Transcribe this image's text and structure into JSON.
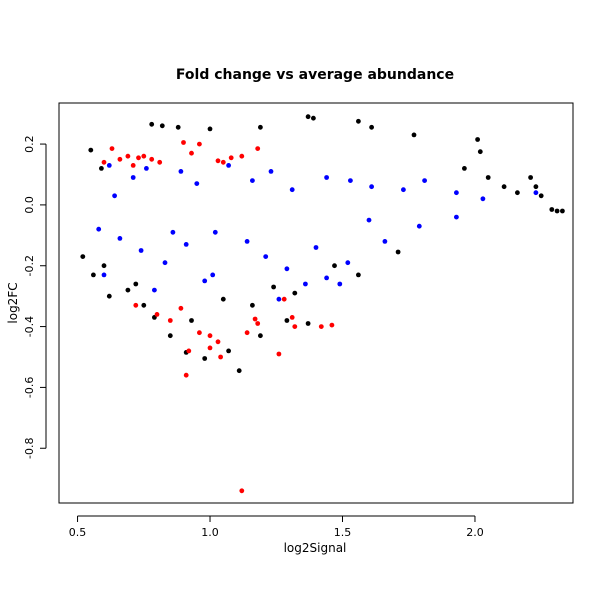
{
  "chart_data": {
    "type": "scatter",
    "title": "Fold change vs average abundance",
    "xlabel": "log2Signal",
    "ylabel": "log2FC",
    "xlim": [
      0.43,
      2.37
    ],
    "ylim": [
      -0.98,
      0.335
    ],
    "xticks": [
      0.5,
      1.0,
      1.5,
      2.0
    ],
    "xtick_labels": [
      "0.5",
      "1.0",
      "1.5",
      "2.0"
    ],
    "yticks": [
      -0.8,
      -0.6,
      -0.4,
      -0.2,
      0.0,
      0.2
    ],
    "ytick_labels": [
      "-0.8",
      "-0.6",
      "-0.4",
      "-0.2",
      "0.0",
      "0.2"
    ],
    "grid": false,
    "legend": "none",
    "series": [
      {
        "color": "#000000",
        "points": [
          [
            1.37,
            0.29
          ],
          [
            1.39,
            0.285
          ],
          [
            1.56,
            0.275
          ],
          [
            0.78,
            0.265
          ],
          [
            0.82,
            0.26
          ],
          [
            0.88,
            0.255
          ],
          [
            1.19,
            0.255
          ],
          [
            1.0,
            0.25
          ],
          [
            1.77,
            0.23
          ],
          [
            2.01,
            0.215
          ],
          [
            2.02,
            0.175
          ],
          [
            2.21,
            0.09
          ],
          [
            2.23,
            0.06
          ],
          [
            2.25,
            0.03
          ],
          [
            2.31,
            -0.02
          ],
          [
            2.33,
            -0.02
          ],
          [
            2.29,
            -0.015
          ],
          [
            1.71,
            -0.155
          ],
          [
            1.11,
            -0.545
          ],
          [
            0.98,
            -0.505
          ],
          [
            0.91,
            -0.485
          ],
          [
            1.07,
            -0.48
          ],
          [
            1.19,
            -0.43
          ],
          [
            0.85,
            -0.43
          ],
          [
            1.37,
            -0.39
          ],
          [
            1.29,
            -0.38
          ],
          [
            0.93,
            -0.38
          ],
          [
            0.79,
            -0.37
          ],
          [
            0.62,
            -0.3
          ],
          [
            0.69,
            -0.28
          ],
          [
            0.56,
            -0.23
          ],
          [
            0.6,
            -0.2
          ],
          [
            0.52,
            -0.17
          ],
          [
            1.61,
            0.255
          ],
          [
            0.55,
            0.18
          ],
          [
            0.59,
            0.12
          ],
          [
            1.96,
            0.12
          ],
          [
            2.05,
            0.09
          ],
          [
            2.11,
            0.06
          ],
          [
            2.16,
            0.04
          ],
          [
            1.56,
            -0.23
          ],
          [
            1.47,
            -0.2
          ],
          [
            1.24,
            -0.27
          ],
          [
            1.32,
            -0.29
          ],
          [
            1.05,
            -0.31
          ],
          [
            1.16,
            -0.33
          ],
          [
            0.75,
            -0.33
          ],
          [
            0.72,
            -0.26
          ]
        ]
      },
      {
        "color": "#0000ff",
        "points": [
          [
            0.62,
            0.13
          ],
          [
            0.71,
            0.09
          ],
          [
            0.76,
            0.12
          ],
          [
            0.89,
            0.11
          ],
          [
            0.95,
            0.07
          ],
          [
            1.07,
            0.13
          ],
          [
            1.16,
            0.08
          ],
          [
            1.23,
            0.11
          ],
          [
            1.31,
            0.05
          ],
          [
            1.44,
            0.09
          ],
          [
            1.53,
            0.08
          ],
          [
            1.61,
            0.06
          ],
          [
            1.73,
            0.05
          ],
          [
            1.81,
            0.08
          ],
          [
            1.93,
            0.04
          ],
          [
            2.03,
            0.02
          ],
          [
            2.23,
            0.04
          ],
          [
            0.64,
            0.03
          ],
          [
            0.58,
            -0.08
          ],
          [
            0.66,
            -0.11
          ],
          [
            0.74,
            -0.15
          ],
          [
            0.83,
            -0.19
          ],
          [
            0.91,
            -0.13
          ],
          [
            1.02,
            -0.09
          ],
          [
            1.14,
            -0.12
          ],
          [
            1.21,
            -0.17
          ],
          [
            1.29,
            -0.21
          ],
          [
            1.36,
            -0.26
          ],
          [
            1.44,
            -0.24
          ],
          [
            1.52,
            -0.19
          ],
          [
            1.66,
            -0.12
          ],
          [
            1.79,
            -0.07
          ],
          [
            0.6,
            -0.23
          ],
          [
            0.79,
            -0.28
          ],
          [
            0.98,
            -0.25
          ],
          [
            1.26,
            -0.31
          ],
          [
            1.49,
            -0.26
          ],
          [
            1.01,
            -0.23
          ],
          [
            0.86,
            -0.09
          ],
          [
            1.4,
            -0.14
          ],
          [
            1.6,
            -0.05
          ],
          [
            1.93,
            -0.04
          ]
        ]
      },
      {
        "color": "#ff0000",
        "points": [
          [
            0.6,
            0.14
          ],
          [
            0.63,
            0.185
          ],
          [
            0.66,
            0.15
          ],
          [
            0.69,
            0.16
          ],
          [
            0.71,
            0.13
          ],
          [
            0.73,
            0.155
          ],
          [
            0.75,
            0.16
          ],
          [
            0.78,
            0.15
          ],
          [
            0.81,
            0.14
          ],
          [
            0.9,
            0.205
          ],
          [
            0.93,
            0.17
          ],
          [
            0.96,
            0.2
          ],
          [
            1.03,
            0.145
          ],
          [
            1.05,
            0.14
          ],
          [
            1.08,
            0.155
          ],
          [
            1.12,
            0.16
          ],
          [
            1.18,
            0.185
          ],
          [
            0.72,
            -0.33
          ],
          [
            0.8,
            -0.36
          ],
          [
            0.85,
            -0.38
          ],
          [
            0.89,
            -0.34
          ],
          [
            0.91,
            -0.56
          ],
          [
            0.92,
            -0.48
          ],
          [
            0.96,
            -0.42
          ],
          [
            1.0,
            -0.43
          ],
          [
            1.0,
            -0.47
          ],
          [
            1.03,
            -0.45
          ],
          [
            1.04,
            -0.5
          ],
          [
            1.14,
            -0.42
          ],
          [
            1.17,
            -0.375
          ],
          [
            1.18,
            -0.39
          ],
          [
            1.26,
            -0.49
          ],
          [
            1.28,
            -0.31
          ],
          [
            1.31,
            -0.37
          ],
          [
            1.32,
            -0.4
          ],
          [
            1.42,
            -0.4
          ],
          [
            1.46,
            -0.395
          ],
          [
            1.12,
            -0.94
          ]
        ]
      }
    ]
  }
}
